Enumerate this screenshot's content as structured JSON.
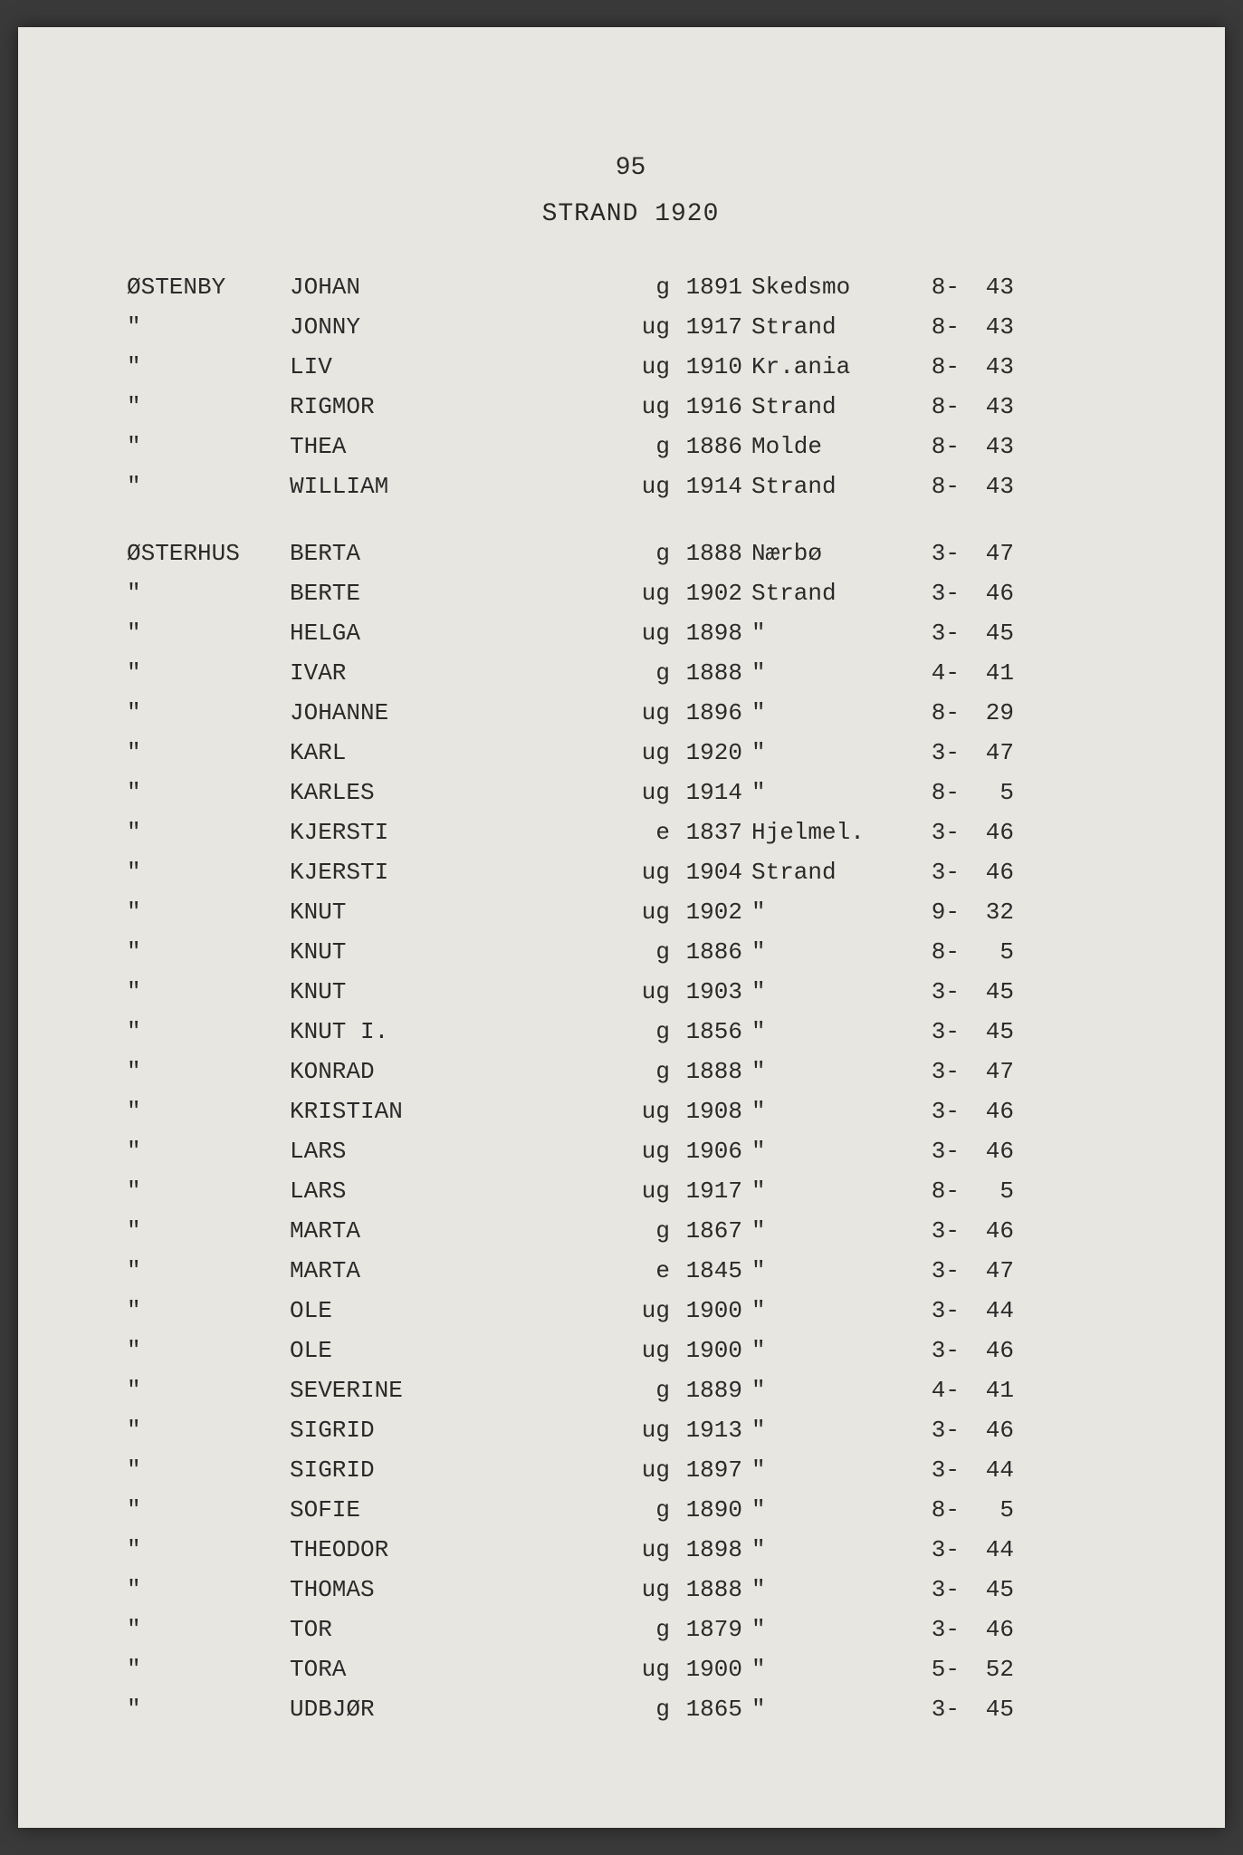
{
  "page_number": "95",
  "title": "STRAND 1920",
  "background_color": "#e8e6e0",
  "text_color": "#2a2a2a",
  "font_family": "Courier New",
  "font_size": 26,
  "records": [
    {
      "surname": "ØSTENBY",
      "given": "JOHAN",
      "status": "g",
      "year": "1891",
      "place": "Skedsmo",
      "ref1": "8-",
      "ref2": "43",
      "gap_after": false
    },
    {
      "surname": "\"",
      "given": "JONNY",
      "status": "ug",
      "year": "1917",
      "place": "Strand",
      "ref1": "8-",
      "ref2": "43",
      "gap_after": false
    },
    {
      "surname": "\"",
      "given": "LIV",
      "status": "ug",
      "year": "1910",
      "place": "Kr.ania",
      "ref1": "8-",
      "ref2": "43",
      "gap_after": false
    },
    {
      "surname": "\"",
      "given": "RIGMOR",
      "status": "ug",
      "year": "1916",
      "place": "Strand",
      "ref1": "8-",
      "ref2": "43",
      "gap_after": false
    },
    {
      "surname": "\"",
      "given": "THEA",
      "status": "g",
      "year": "1886",
      "place": "Molde",
      "ref1": "8-",
      "ref2": "43",
      "gap_after": false
    },
    {
      "surname": "\"",
      "given": "WILLIAM",
      "status": "ug",
      "year": "1914",
      "place": "Strand",
      "ref1": "8-",
      "ref2": "43",
      "gap_after": true
    },
    {
      "surname": "ØSTERHUS",
      "given": "BERTA",
      "status": "g",
      "year": "1888",
      "place": "Nærbø",
      "ref1": "3-",
      "ref2": "47",
      "gap_after": false
    },
    {
      "surname": "\"",
      "given": "BERTE",
      "status": "ug",
      "year": "1902",
      "place": "Strand",
      "ref1": "3-",
      "ref2": "46",
      "gap_after": false
    },
    {
      "surname": "\"",
      "given": "HELGA",
      "status": "ug",
      "year": "1898",
      "place": "\"",
      "ref1": "3-",
      "ref2": "45",
      "gap_after": false
    },
    {
      "surname": "\"",
      "given": "IVAR",
      "status": "g",
      "year": "1888",
      "place": "\"",
      "ref1": "4-",
      "ref2": "41",
      "gap_after": false
    },
    {
      "surname": "\"",
      "given": "JOHANNE",
      "status": "ug",
      "year": "1896",
      "place": "\"",
      "ref1": "8-",
      "ref2": "29",
      "gap_after": false
    },
    {
      "surname": "\"",
      "given": "KARL",
      "status": "ug",
      "year": "1920",
      "place": "\"",
      "ref1": "3-",
      "ref2": "47",
      "gap_after": false
    },
    {
      "surname": "\"",
      "given": "KARLES",
      "status": "ug",
      "year": "1914",
      "place": "\"",
      "ref1": "8-",
      "ref2": "5",
      "gap_after": false
    },
    {
      "surname": "\"",
      "given": "KJERSTI",
      "status": "e",
      "year": "1837",
      "place": "Hjelmel.",
      "ref1": "3-",
      "ref2": "46",
      "gap_after": false
    },
    {
      "surname": "\"",
      "given": "KJERSTI",
      "status": "ug",
      "year": "1904",
      "place": "Strand",
      "ref1": "3-",
      "ref2": "46",
      "gap_after": false
    },
    {
      "surname": "\"",
      "given": "KNUT",
      "status": "ug",
      "year": "1902",
      "place": "\"",
      "ref1": "9-",
      "ref2": "32",
      "gap_after": false
    },
    {
      "surname": "\"",
      "given": "KNUT",
      "status": "g",
      "year": "1886",
      "place": "\"",
      "ref1": "8-",
      "ref2": "5",
      "gap_after": false
    },
    {
      "surname": "\"",
      "given": "KNUT",
      "status": "ug",
      "year": "1903",
      "place": "\"",
      "ref1": "3-",
      "ref2": "45",
      "gap_after": false
    },
    {
      "surname": "\"",
      "given": "KNUT I.",
      "status": "g",
      "year": "1856",
      "place": "\"",
      "ref1": "3-",
      "ref2": "45",
      "gap_after": false
    },
    {
      "surname": "\"",
      "given": "KONRAD",
      "status": "g",
      "year": "1888",
      "place": "\"",
      "ref1": "3-",
      "ref2": "47",
      "gap_after": false
    },
    {
      "surname": "\"",
      "given": "KRISTIAN",
      "status": "ug",
      "year": "1908",
      "place": "\"",
      "ref1": "3-",
      "ref2": "46",
      "gap_after": false
    },
    {
      "surname": "\"",
      "given": "LARS",
      "status": "ug",
      "year": "1906",
      "place": "\"",
      "ref1": "3-",
      "ref2": "46",
      "gap_after": false
    },
    {
      "surname": "\"",
      "given": "LARS",
      "status": "ug",
      "year": "1917",
      "place": "\"",
      "ref1": "8-",
      "ref2": "5",
      "gap_after": false
    },
    {
      "surname": "\"",
      "given": "MARTA",
      "status": "g",
      "year": "1867",
      "place": "\"",
      "ref1": "3-",
      "ref2": "46",
      "gap_after": false
    },
    {
      "surname": "\"",
      "given": "MARTA",
      "status": "e",
      "year": "1845",
      "place": "\"",
      "ref1": "3-",
      "ref2": "47",
      "gap_after": false
    },
    {
      "surname": "\"",
      "given": "OLE",
      "status": "ug",
      "year": "1900",
      "place": "\"",
      "ref1": "3-",
      "ref2": "44",
      "gap_after": false
    },
    {
      "surname": "\"",
      "given": "OLE",
      "status": "ug",
      "year": "1900",
      "place": "\"",
      "ref1": "3-",
      "ref2": "46",
      "gap_after": false
    },
    {
      "surname": "\"",
      "given": "SEVERINE",
      "status": "g",
      "year": "1889",
      "place": "\"",
      "ref1": "4-",
      "ref2": "41",
      "gap_after": false
    },
    {
      "surname": "\"",
      "given": "SIGRID",
      "status": "ug",
      "year": "1913",
      "place": "\"",
      "ref1": "3-",
      "ref2": "46",
      "gap_after": false
    },
    {
      "surname": "\"",
      "given": "SIGRID",
      "status": "ug",
      "year": "1897",
      "place": "\"",
      "ref1": "3-",
      "ref2": "44",
      "gap_after": false
    },
    {
      "surname": "\"",
      "given": "SOFIE",
      "status": "g",
      "year": "1890",
      "place": "\"",
      "ref1": "8-",
      "ref2": "5",
      "gap_after": false
    },
    {
      "surname": "\"",
      "given": "THEODOR",
      "status": "ug",
      "year": "1898",
      "place": "\"",
      "ref1": "3-",
      "ref2": "44",
      "gap_after": false
    },
    {
      "surname": "\"",
      "given": "THOMAS",
      "status": "ug",
      "year": "1888",
      "place": "\"",
      "ref1": "3-",
      "ref2": "45",
      "gap_after": false
    },
    {
      "surname": "\"",
      "given": "TOR",
      "status": "g",
      "year": "1879",
      "place": "\"",
      "ref1": "3-",
      "ref2": "46",
      "gap_after": false
    },
    {
      "surname": "\"",
      "given": "TORA",
      "status": "ug",
      "year": "1900",
      "place": "\"",
      "ref1": "5-",
      "ref2": "52",
      "gap_after": false
    },
    {
      "surname": "\"",
      "given": "UDBJØR",
      "status": "g",
      "year": "1865",
      "place": "\"",
      "ref1": "3-",
      "ref2": "45",
      "gap_after": false
    }
  ]
}
